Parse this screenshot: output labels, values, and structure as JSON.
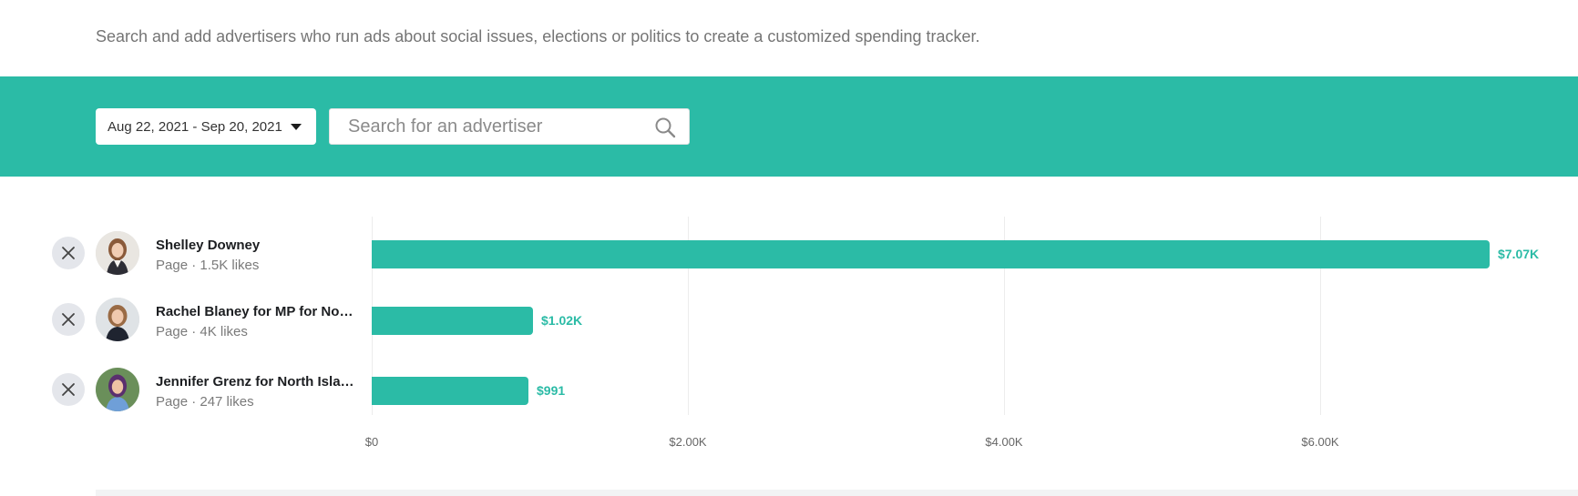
{
  "intro": {
    "text": "Search and add advertisers who run ads about social issues, elections or politics to create a customized spending tracker."
  },
  "toolbar": {
    "date_range": "Aug 22, 2021 - Sep 20, 2021",
    "search_placeholder": "Search for an advertiser",
    "search_value": ""
  },
  "colors": {
    "accent": "#2bbba6",
    "remove_button": "#e4e6eb",
    "text_primary": "#1c1e21",
    "text_secondary": "#7a7a7a"
  },
  "icons": {
    "remove": "close-icon",
    "search": "search-icon",
    "dropdown": "caret-down-icon"
  },
  "chart_data": {
    "type": "bar",
    "orientation": "horizontal",
    "categories": [
      "Shelley Downey",
      "Rachel Blaney for MP for North Island-Powell River",
      "Jennifer Grenz for North Island-Powell River"
    ],
    "category_meta": [
      "Page · 1.5K likes",
      "Page · 4K likes",
      "Page · 247 likes"
    ],
    "values": [
      7070,
      1020,
      991
    ],
    "value_labels": [
      "$7.07K",
      "$1.02K",
      "$991"
    ],
    "x_ticks": [
      0,
      2000,
      4000,
      6000
    ],
    "x_tick_labels": [
      "$0",
      "$2.00K",
      "$4.00K",
      "$6.00K"
    ],
    "xlim": [
      0,
      7070
    ],
    "grid": true,
    "title": "",
    "xlabel": "",
    "ylabel": ""
  }
}
